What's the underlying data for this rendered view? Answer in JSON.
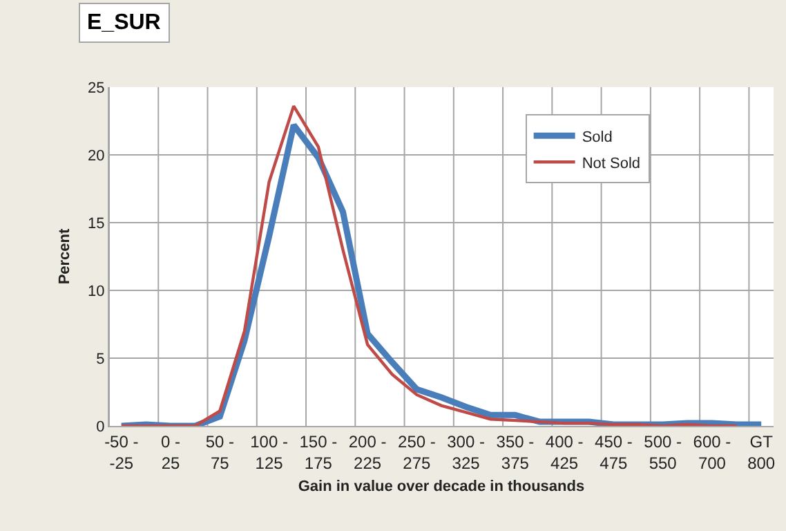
{
  "chart_data": {
    "type": "line",
    "title": "E_SUR",
    "xlabel": "Gain in value over decade in thousands",
    "ylabel": "Percent",
    "categories": [
      "-50 - -25",
      null,
      "0 - 25",
      null,
      "50 - 75",
      null,
      "100 - 125",
      null,
      "150 - 175",
      null,
      "200 - 225",
      null,
      "250 - 275",
      null,
      "300 - 325",
      null,
      "350 - 375",
      null,
      "400 - 425",
      null,
      "450 - 475",
      null,
      "500 - 550",
      null,
      "600 - 700",
      null,
      "GT 800"
    ],
    "series": [
      {
        "name": "Sold",
        "color": "#4a7ebb",
        "values": [
          0,
          0.1,
          0,
          0,
          0.7,
          6.3,
          14,
          22.2,
          19.8,
          15.8,
          6.8,
          4.7,
          2.7,
          2.1,
          1.4,
          0.8,
          0.8,
          0.3,
          0.3,
          0.3,
          0.1,
          0.1,
          0.1,
          0.2,
          0.2,
          0.1,
          0.1
        ]
      },
      {
        "name": "Not Sold",
        "color": "#be4b48",
        "values": [
          0,
          0,
          0,
          0,
          1.1,
          7,
          18,
          23.6,
          20.6,
          13,
          6,
          3.8,
          2.3,
          1.5,
          1.0,
          0.5,
          0.4,
          0.3,
          0.2,
          0.2,
          0.1,
          0.1,
          0,
          0.1,
          0,
          0,
          null
        ]
      }
    ],
    "ylim": [
      0,
      25
    ],
    "yticks": [
      0,
      5,
      10,
      15,
      20,
      25
    ],
    "grid": true,
    "legend": "top right",
    "marker": "none",
    "line_style": "solid"
  }
}
